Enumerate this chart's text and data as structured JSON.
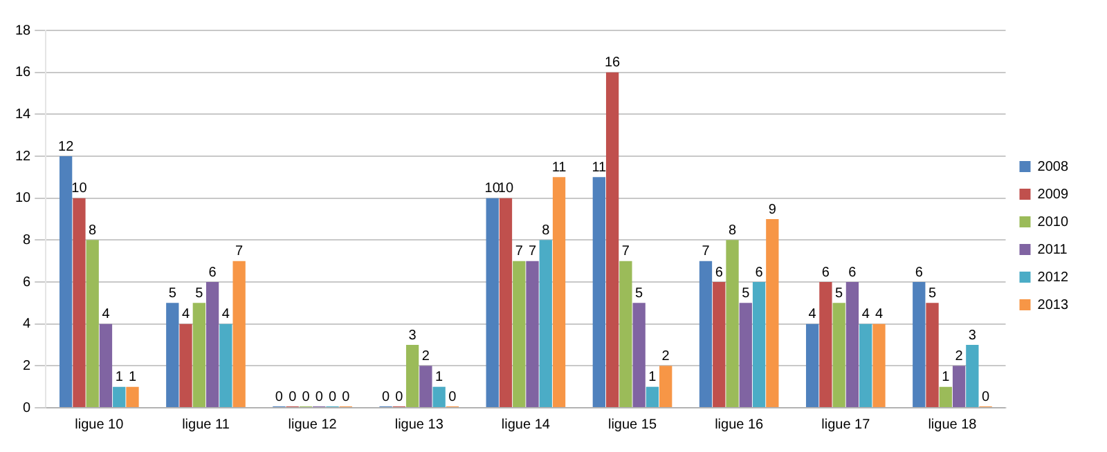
{
  "chart_data": {
    "type": "bar",
    "categories": [
      "ligue 10",
      "ligue 11",
      "ligue 12",
      "ligue 13",
      "ligue 14",
      "ligue 15",
      "ligue 16",
      "ligue 17",
      "ligue 18"
    ],
    "series": [
      {
        "name": "2008",
        "color": "#4f81bd",
        "values": [
          12,
          5,
          0,
          0,
          10,
          11,
          7,
          4,
          6
        ]
      },
      {
        "name": "2009",
        "color": "#c0504d",
        "values": [
          10,
          4,
          0,
          0,
          10,
          16,
          6,
          6,
          5
        ]
      },
      {
        "name": "2010",
        "color": "#9bbb59",
        "values": [
          8,
          5,
          0,
          3,
          7,
          7,
          8,
          5,
          1
        ]
      },
      {
        "name": "2011",
        "color": "#8064a2",
        "values": [
          4,
          6,
          0,
          2,
          7,
          5,
          5,
          6,
          2
        ]
      },
      {
        "name": "2012",
        "color": "#4bacc6",
        "values": [
          1,
          4,
          0,
          1,
          8,
          1,
          6,
          4,
          3
        ]
      },
      {
        "name": "2013",
        "color": "#f79646",
        "values": [
          1,
          7,
          0,
          0,
          11,
          2,
          9,
          4,
          0
        ]
      }
    ],
    "ylim": [
      0,
      18
    ],
    "yticks": [
      0,
      2,
      4,
      6,
      8,
      10,
      12,
      14,
      16,
      18
    ],
    "grid": "y",
    "legend": "right",
    "data_labels": true
  }
}
